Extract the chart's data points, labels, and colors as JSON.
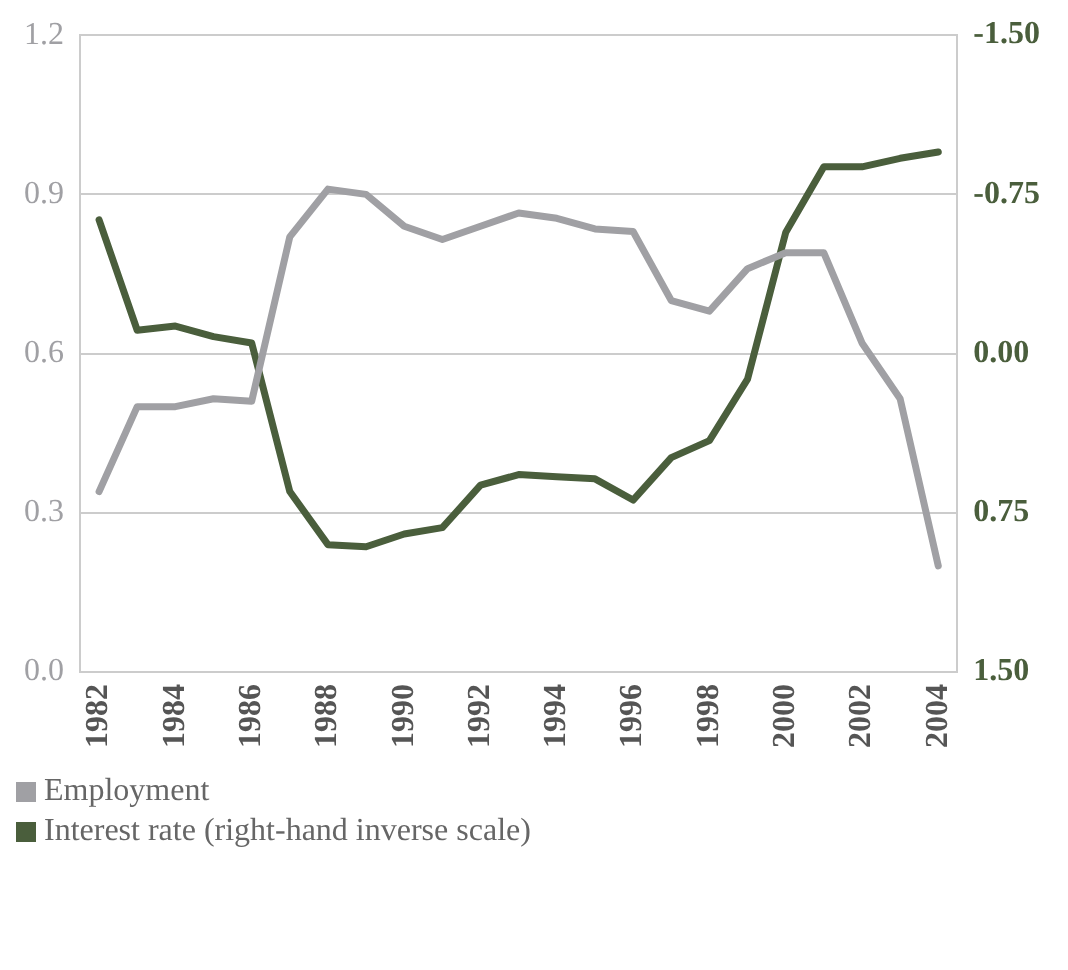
{
  "chart_data": {
    "type": "line",
    "categories": [
      "1982",
      null,
      "1984",
      null,
      "1986",
      null,
      "1988",
      null,
      "1990",
      null,
      "1992",
      null,
      "1994",
      null,
      "1996",
      null,
      "1998",
      null,
      "2000",
      null,
      "2002",
      null,
      "2004"
    ],
    "series": [
      {
        "name": "Employment",
        "color": "#a0a0a4",
        "values": [
          0.34,
          0.5,
          0.5,
          0.515,
          0.51,
          0.82,
          0.91,
          0.9,
          0.84,
          0.815,
          0.84,
          0.865,
          0.855,
          0.835,
          0.83,
          0.7,
          0.68,
          0.76,
          0.79,
          0.79,
          0.62,
          0.515,
          0.2
        ]
      },
      {
        "name": "Interest rate (right-hand inverse scale)",
        "color": "#4a5e3c",
        "axis": "y2",
        "values": [
          -0.63,
          -0.11,
          -0.13,
          -0.08,
          -0.05,
          0.65,
          0.9,
          0.91,
          0.85,
          0.82,
          0.62,
          0.57,
          0.58,
          0.59,
          0.69,
          0.49,
          0.41,
          0.12,
          -0.57,
          -0.88,
          -0.88,
          -0.92,
          -0.95
        ]
      }
    ],
    "ylim": [
      0,
      1.2
    ],
    "yticks": [
      {
        "value": 0,
        "label": "0.0"
      },
      0.3,
      0.6,
      0.9,
      1.2
    ],
    "y2lim": [
      1.5,
      -1.5
    ],
    "y2ticks": [
      {
        "value": 1.5,
        "label": "1.50"
      },
      {
        "value": 0.75,
        "label": "0.75"
      },
      {
        "value": 0,
        "label": "0.00"
      },
      {
        "value": -0.75,
        "label": "-0.75"
      },
      {
        "value": -1.5,
        "label": "-1.50"
      }
    ],
    "grid": "y",
    "legend": "bottom left",
    "marker": "none",
    "line_style": "solid"
  }
}
